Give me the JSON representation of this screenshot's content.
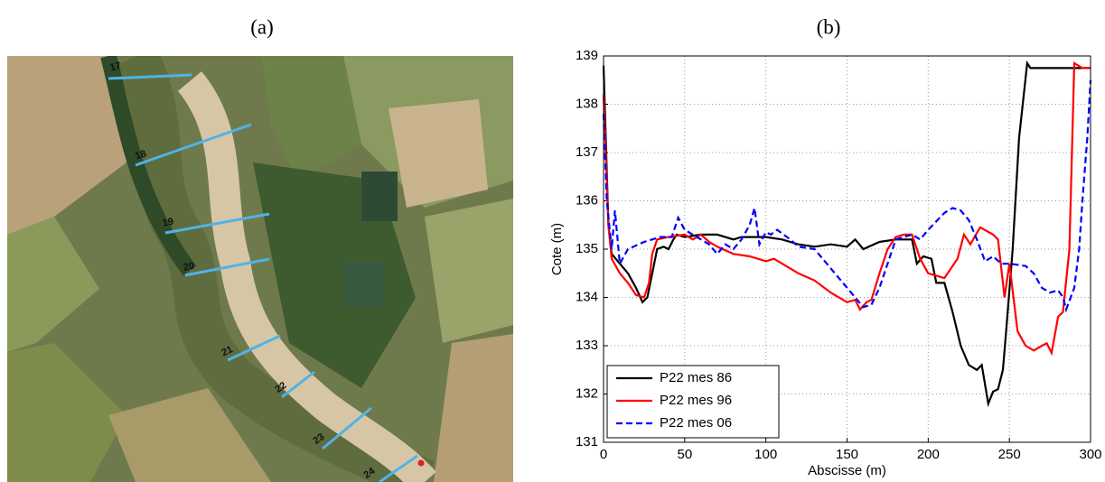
{
  "photo": {
    "label": "(a)",
    "sections": [
      "17",
      "18",
      "19",
      "20",
      "21",
      "22",
      "23",
      "24"
    ]
  },
  "chart_data": {
    "type": "line",
    "panel_label": "(b)",
    "x_label": "Abscisse (m)",
    "y_label": "Cote (m)",
    "xlim": [
      0,
      300
    ],
    "xticks": [
      0,
      50,
      100,
      150,
      200,
      250,
      300
    ],
    "ylim": [
      131,
      139
    ],
    "yticks": [
      131,
      132,
      133,
      134,
      135,
      136,
      137,
      138,
      139
    ],
    "grid": true,
    "legend": "lower left",
    "series": [
      {
        "name": "P22 mes 86",
        "color": "#000000",
        "dash": false,
        "x": [
          0,
          3,
          5,
          10,
          15,
          20,
          24,
          27,
          30,
          33,
          37,
          40,
          43,
          45,
          50,
          60,
          70,
          80,
          85,
          100,
          110,
          120,
          130,
          140,
          150,
          155,
          160,
          170,
          180,
          190,
          193,
          197,
          202,
          205,
          210,
          215,
          220,
          225,
          230,
          233,
          237,
          240,
          243,
          246,
          248,
          252,
          256,
          261,
          263,
          300
        ],
        "values": [
          138.8,
          135.5,
          134.9,
          134.7,
          134.5,
          134.2,
          133.9,
          134.0,
          134.5,
          135.0,
          135.05,
          135.0,
          135.2,
          135.3,
          135.25,
          135.3,
          135.3,
          135.2,
          135.25,
          135.25,
          135.2,
          135.1,
          135.05,
          135.1,
          135.05,
          135.2,
          135.0,
          135.15,
          135.2,
          135.2,
          134.7,
          134.85,
          134.8,
          134.3,
          134.3,
          133.7,
          133.0,
          132.6,
          132.5,
          132.6,
          131.8,
          132.05,
          132.1,
          132.5,
          133.3,
          135.0,
          137.3,
          138.85,
          138.75,
          138.75
        ]
      },
      {
        "name": "P22 mes 96",
        "color": "#ff0000",
        "dash": false,
        "x": [
          0,
          3,
          5,
          10,
          15,
          20,
          25,
          28,
          30,
          33,
          40,
          50,
          55,
          60,
          65,
          70,
          80,
          90,
          100,
          105,
          110,
          120,
          130,
          140,
          150,
          155,
          158,
          162,
          165,
          170,
          175,
          180,
          185,
          190,
          195,
          200,
          210,
          218,
          222,
          226,
          232,
          240,
          243,
          247,
          250,
          255,
          260,
          265,
          270,
          273,
          276,
          280,
          283,
          287,
          290,
          295,
          300
        ],
        "values": [
          138.2,
          135.5,
          134.8,
          134.5,
          134.3,
          134.05,
          134.0,
          134.3,
          134.9,
          135.2,
          135.25,
          135.3,
          135.2,
          135.3,
          135.15,
          135.05,
          134.9,
          134.85,
          134.75,
          134.8,
          134.7,
          134.5,
          134.35,
          134.1,
          133.9,
          133.95,
          133.75,
          133.9,
          133.95,
          134.5,
          135.0,
          135.25,
          135.3,
          135.3,
          134.8,
          134.5,
          134.4,
          134.8,
          135.3,
          135.1,
          135.45,
          135.3,
          135.2,
          134.0,
          134.7,
          133.3,
          133.0,
          132.9,
          133.0,
          133.05,
          132.85,
          133.6,
          133.7,
          135.0,
          138.85,
          138.75,
          138.75
        ]
      },
      {
        "name": "P22 mes 06",
        "color": "#0000ff",
        "dash": true,
        "x": [
          0,
          2,
          5,
          7,
          10,
          15,
          25,
          35,
          42,
          46,
          50,
          55,
          60,
          65,
          70,
          75,
          80,
          85,
          90,
          93,
          96,
          100,
          103,
          107,
          115,
          120,
          130,
          140,
          150,
          155,
          160,
          165,
          170,
          175,
          180,
          185,
          190,
          195,
          200,
          210,
          215,
          220,
          225,
          230,
          235,
          240,
          245,
          250,
          260,
          265,
          270,
          275,
          280,
          283,
          285,
          290,
          293,
          295,
          298,
          300
        ],
        "values": [
          137.8,
          136.0,
          135.0,
          135.8,
          134.7,
          135.0,
          135.15,
          135.25,
          135.25,
          135.65,
          135.4,
          135.3,
          135.2,
          135.1,
          134.9,
          135.1,
          135.0,
          135.2,
          135.5,
          135.85,
          135.1,
          135.35,
          135.3,
          135.4,
          135.2,
          135.05,
          135.0,
          134.6,
          134.2,
          134.0,
          133.8,
          133.85,
          134.2,
          134.7,
          135.2,
          135.25,
          135.3,
          135.2,
          135.4,
          135.75,
          135.85,
          135.8,
          135.6,
          135.2,
          134.75,
          134.85,
          134.7,
          134.7,
          134.65,
          134.5,
          134.2,
          134.1,
          134.15,
          134.0,
          133.75,
          134.2,
          135.0,
          136.0,
          137.3,
          138.5
        ]
      }
    ]
  }
}
